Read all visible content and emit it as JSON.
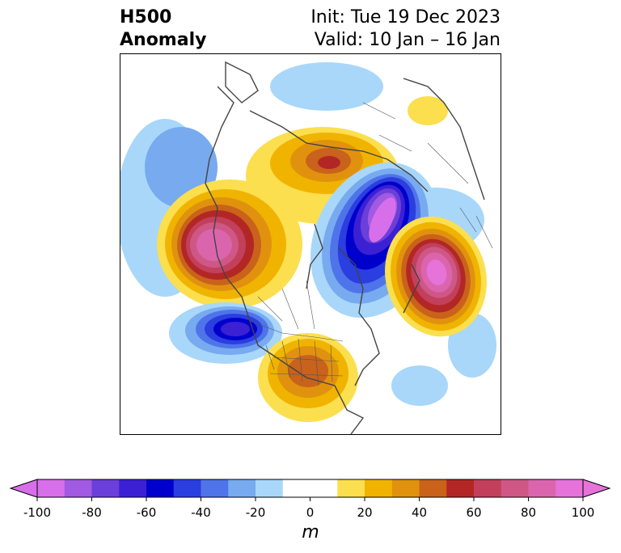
{
  "title": {
    "left_line1": "H500",
    "left_line2": "Anomaly",
    "right_line1": "Init: Tue 19 Dec 2023",
    "right_line2": "Valid: 10 Jan – 16 Jan"
  },
  "colorbar": {
    "unit": "m",
    "min": -100,
    "max": 100,
    "step": 10,
    "extend": "both",
    "tick_labels": [
      "-100",
      "-80",
      "-60",
      "-40",
      "-20",
      "0",
      "20",
      "40",
      "60",
      "80",
      "100"
    ],
    "colors": [
      "#d86fea",
      "#a25ae2",
      "#6b3fd9",
      "#3c20d3",
      "#0000cd",
      "#2b3ee0",
      "#4f74ea",
      "#78aaf0",
      "#a8d7fa",
      "#ffffff",
      "#ffffff",
      "#fbdf4e",
      "#f0b400",
      "#e0920f",
      "#c9621a",
      "#b22725",
      "#c2405c",
      "#cf5786",
      "#db65ad",
      "#e673da"
    ],
    "neg_extend_color": "#d86fea",
    "pos_extend_color": "#e673da"
  },
  "map": {
    "projection": "north-polar stereographic",
    "field": "500 hPa geopotential height anomaly",
    "features": [
      {
        "name": "west-canada-ridge",
        "peak_m": 90
      },
      {
        "name": "hudson-bay-ridge",
        "peak_m": 60
      },
      {
        "name": "siberia-trough",
        "peak_m": -100
      },
      {
        "name": "west-pacific-ridge",
        "peak_m": 100
      },
      {
        "name": "north-pacific-trough",
        "peak_m": -70
      },
      {
        "name": "eastern-us-ridge",
        "peak_m": 50
      },
      {
        "name": "east-pacific-negative",
        "peak_m": -20
      },
      {
        "name": "arctic-negative",
        "peak_m": -20
      },
      {
        "name": "svalbard-positive",
        "peak_m": 20
      }
    ]
  }
}
